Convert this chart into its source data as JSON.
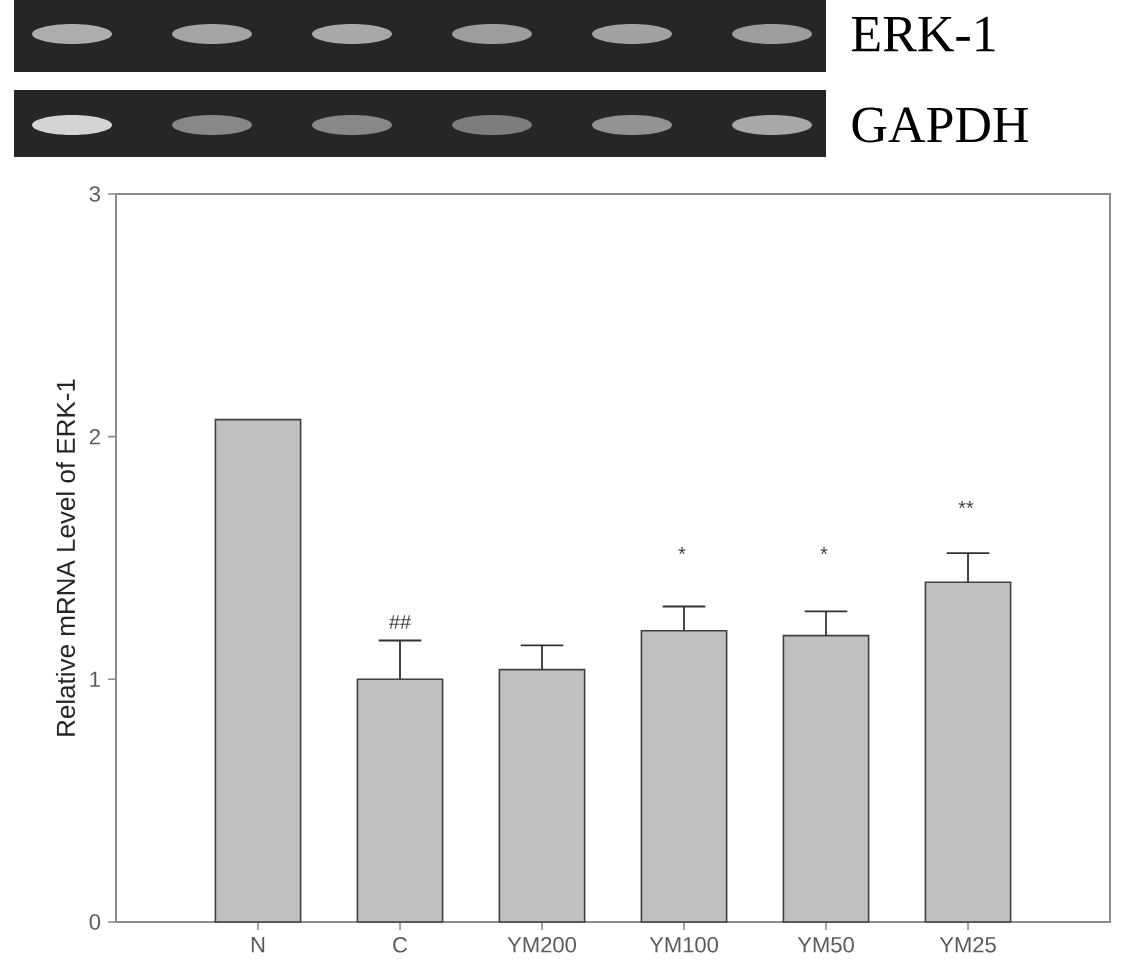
{
  "chart_data": {
    "type": "bar",
    "categories": [
      "N",
      "C",
      "YM200",
      "YM100",
      "YM50",
      "YM25"
    ],
    "values": [
      2.07,
      1.0,
      1.04,
      1.2,
      1.18,
      1.4
    ],
    "errors": [
      null,
      [
        1.0,
        1.16
      ],
      [
        1.04,
        1.14
      ],
      [
        1.2,
        1.3
      ],
      [
        1.18,
        1.28
      ],
      [
        1.4,
        1.52
      ]
    ],
    "color": "#c0c0c0",
    "ylim": [
      0,
      3
    ],
    "yticks": [
      0,
      1,
      2,
      3
    ],
    "ylabel": "Relative mRNA Level of ERK-1",
    "annotations": [
      "ERK-1",
      "GAPDH",
      "##",
      "*",
      "*",
      "**"
    ]
  }
}
